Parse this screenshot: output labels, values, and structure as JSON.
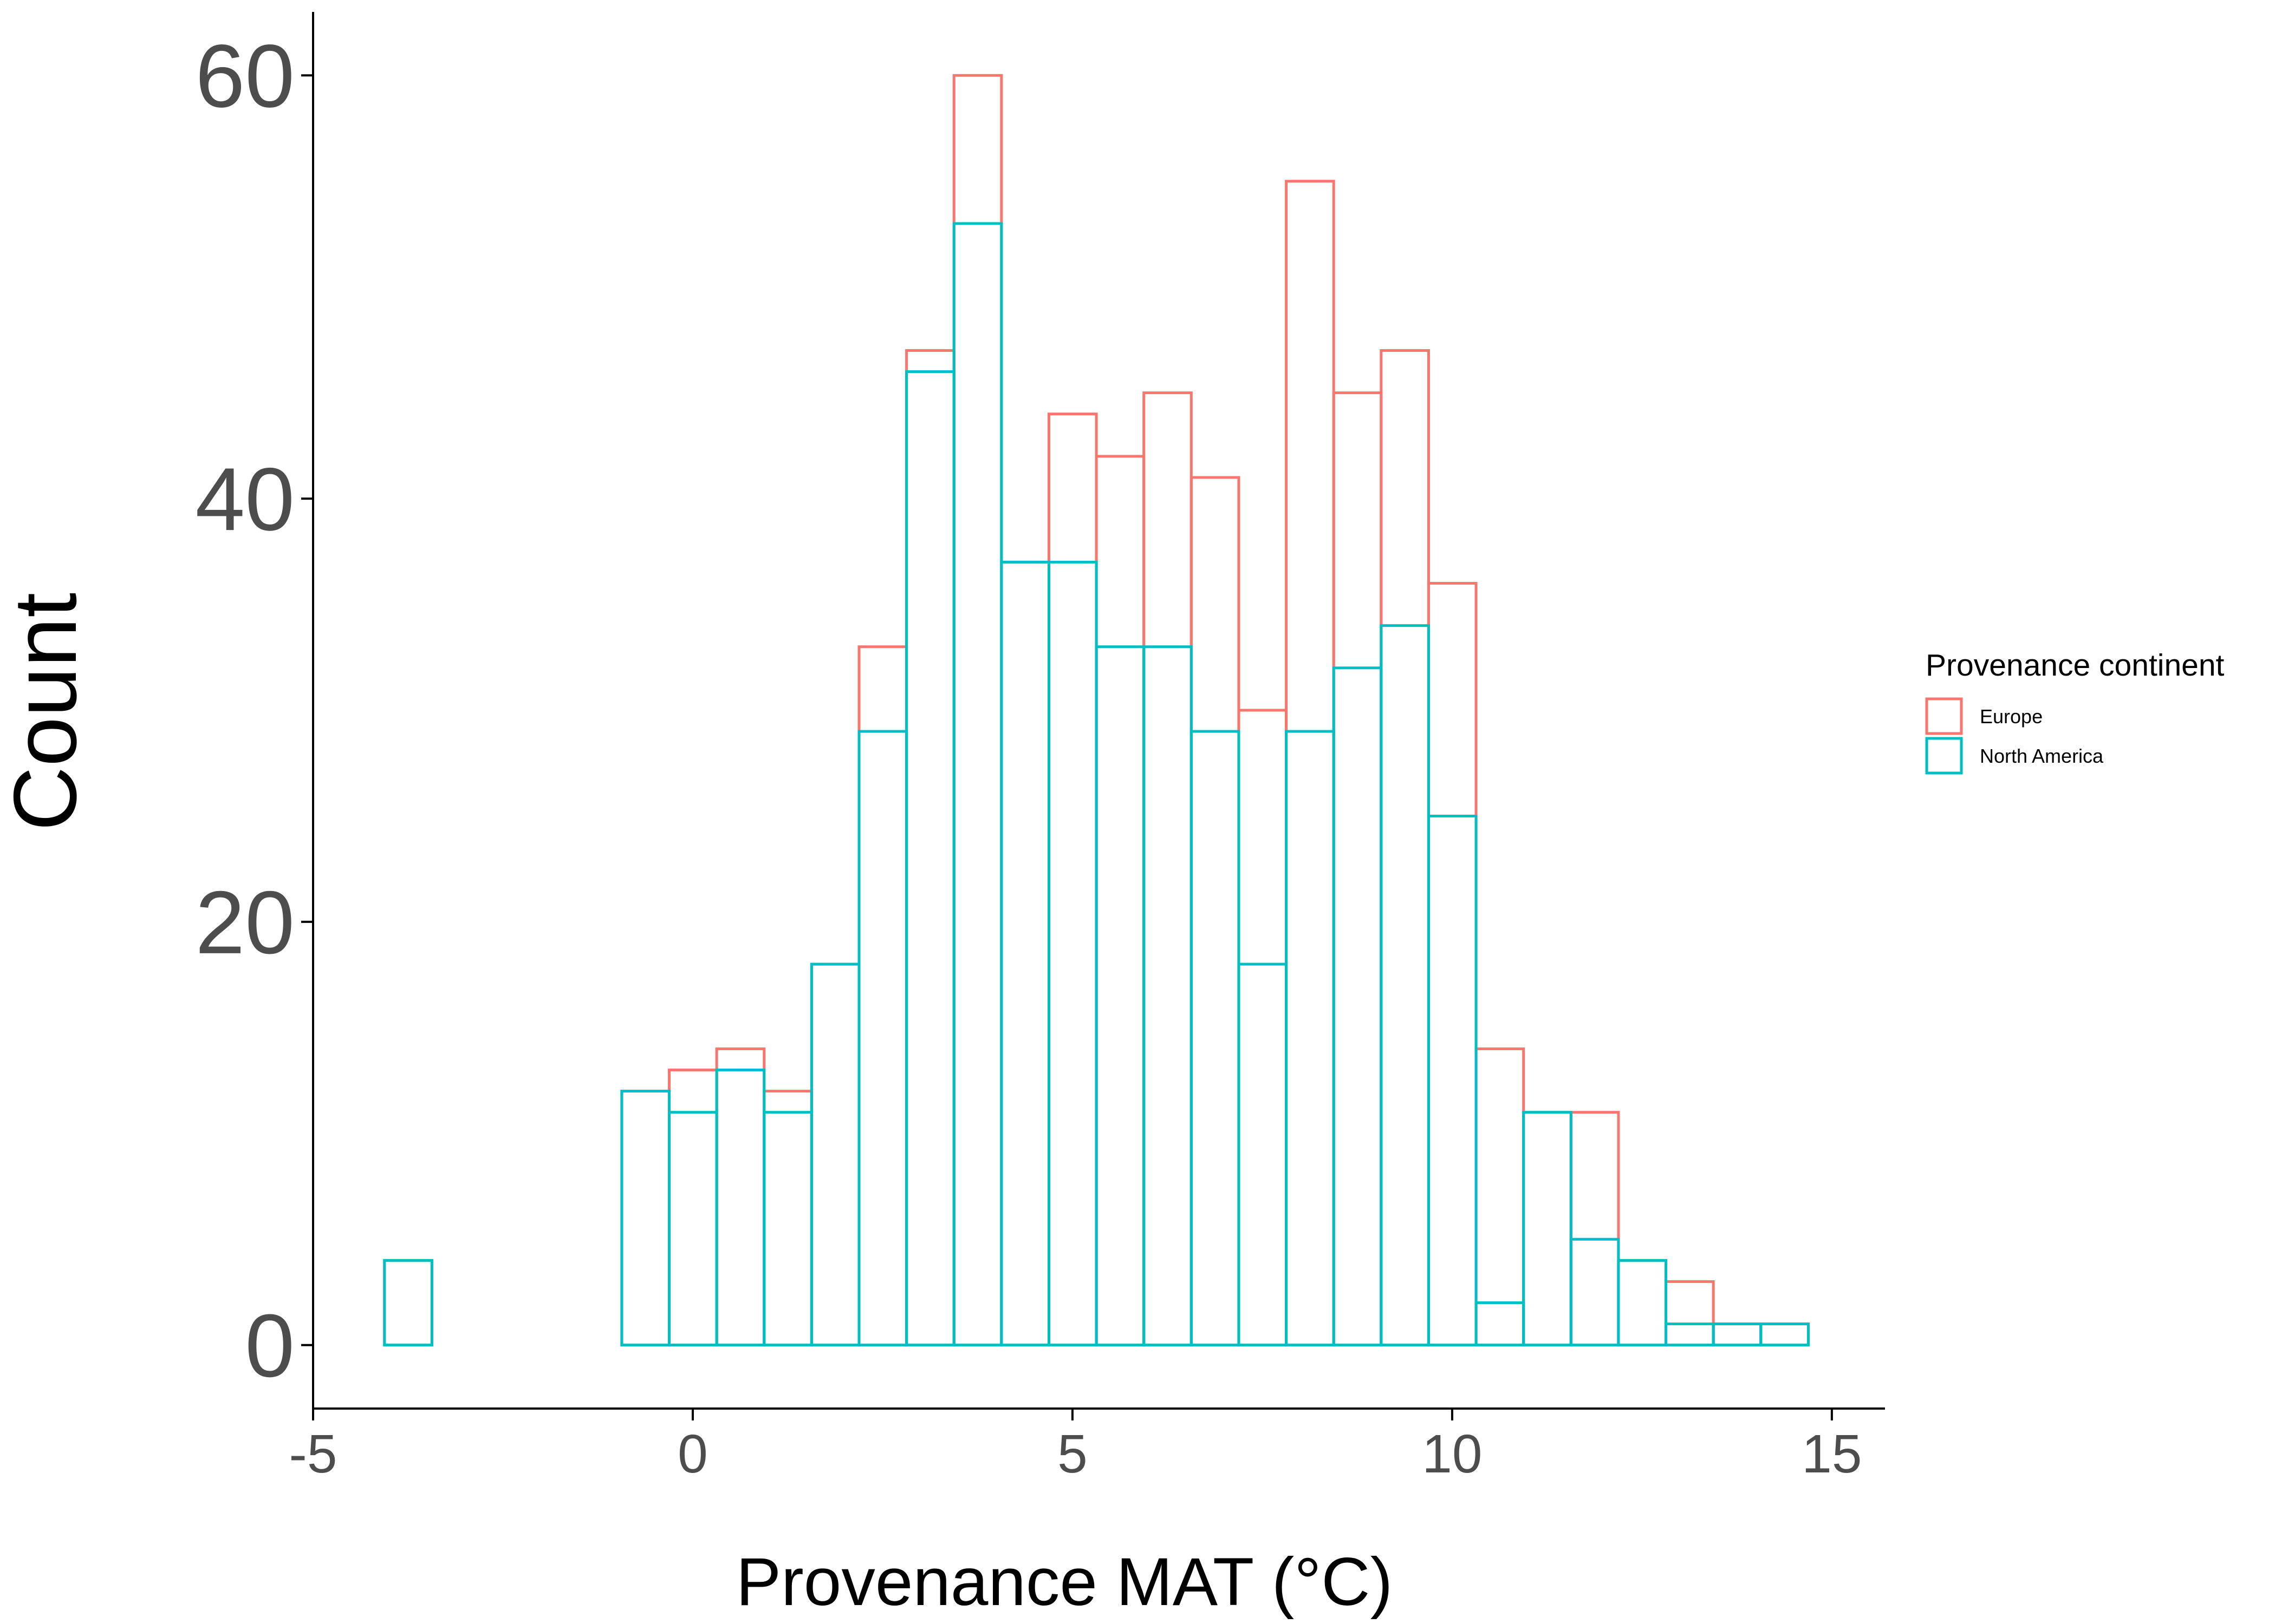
{
  "chart_data": {
    "type": "bar",
    "style": "histogram",
    "xlabel": "Provenance MAT (°C)",
    "ylabel": "Count",
    "xlim": [
      -5,
      15.7
    ],
    "ylim": [
      -3,
      63
    ],
    "x_ticks": [
      -5,
      0,
      5,
      10,
      15
    ],
    "y_ticks": [
      0,
      20,
      40,
      60
    ],
    "bin_width": 0.625,
    "bin_start": -4.06,
    "grid": false,
    "legend": {
      "title": "Provenance continent",
      "placement": "right"
    },
    "series": [
      {
        "name": "Europe",
        "color": "#F8766D",
        "values": [
          4,
          0,
          0,
          0,
          0,
          12,
          13,
          14,
          12,
          18,
          33,
          47,
          60,
          37,
          44,
          42,
          45,
          41,
          30,
          55,
          45,
          47,
          36,
          14,
          11,
          11,
          4,
          3,
          1,
          1
        ]
      },
      {
        "name": "North America",
        "color": "#00BFC4",
        "values": [
          4,
          0,
          0,
          0,
          0,
          12,
          11,
          13,
          11,
          18,
          29,
          46,
          53,
          37,
          37,
          33,
          33,
          29,
          18,
          29,
          32,
          34,
          25,
          2,
          11,
          5,
          4,
          1,
          1,
          1
        ]
      }
    ]
  }
}
